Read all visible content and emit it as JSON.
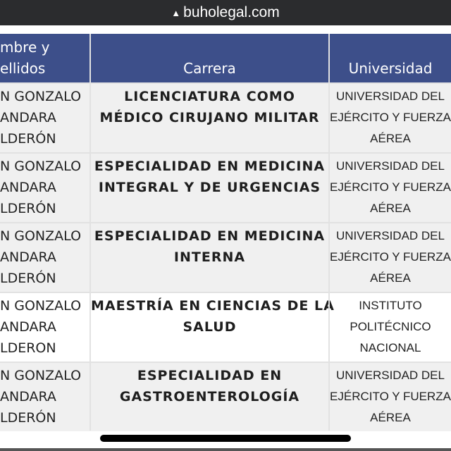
{
  "browser": {
    "url": "buholegal.com",
    "icon": "warning-icon"
  },
  "table": {
    "headers": {
      "name": [
        "mbre y",
        "ellidos"
      ],
      "career": "Carrera",
      "university": "Universidad"
    },
    "rows": [
      {
        "name": [
          "N GONZALO",
          "ANDARA",
          "LDERÓN"
        ],
        "career": [
          "LICENCIATURA COMO",
          "MÉDICO CIRUJANO MILITAR"
        ],
        "university": [
          "UNIVERSIDAD DEL",
          "EJÉRCITO Y FUERZA",
          "AÉREA"
        ]
      },
      {
        "name": [
          "N GONZALO",
          "ANDARA",
          "LDERÓN"
        ],
        "career": [
          "ESPECIALIDAD EN MEDICINA",
          "INTEGRAL Y DE URGENCIAS"
        ],
        "university": [
          "UNIVERSIDAD DEL",
          "EJÉRCITO Y FUERZA",
          "AÉREA"
        ]
      },
      {
        "name": [
          "N GONZALO",
          "ANDARA",
          "LDERÓN"
        ],
        "career": [
          "ESPECIALIDAD EN MEDICINA",
          "INTERNA"
        ],
        "university": [
          "UNIVERSIDAD DEL",
          "EJÉRCITO Y FUERZA",
          "AÉREA"
        ]
      },
      {
        "name": [
          "N GONZALO",
          "ANDARA",
          "LDERON"
        ],
        "career": [
          "MAESTRÍA EN CIENCIAS DE LA",
          "SALUD"
        ],
        "university": [
          "INSTITUTO",
          "POLITÉCNICO",
          "NACIONAL"
        ]
      },
      {
        "name": [
          "N GONZALO",
          "ANDARA",
          "LDERÓN"
        ],
        "career": [
          "ESPECIALIDAD EN",
          "GASTROENTEROLOGÍA"
        ],
        "university": [
          "UNIVERSIDAD DEL",
          "EJÉRCITO Y FUERZA",
          "AÉREA"
        ]
      }
    ]
  },
  "colors": {
    "header_bg": "#3d4f8a",
    "row_alt": "#f0f0f0",
    "topbar": "#2b2c2e"
  }
}
